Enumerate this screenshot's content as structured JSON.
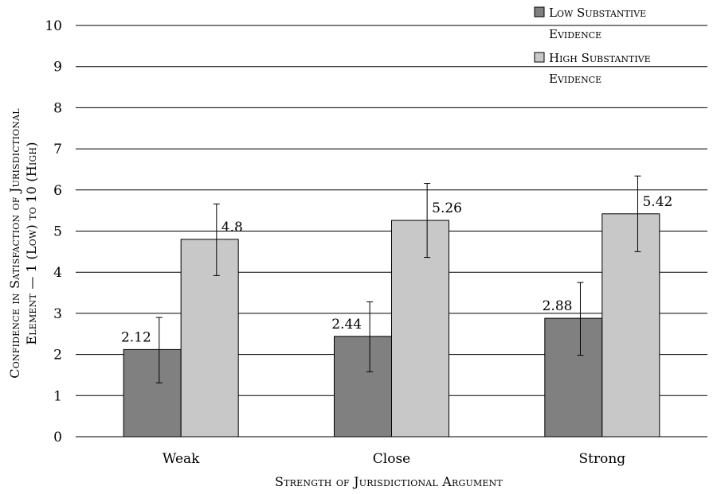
{
  "chart_data": {
    "type": "bar",
    "categories": [
      "Weak",
      "Close",
      "Strong"
    ],
    "series": [
      {
        "name": "Low Substantive Evidence",
        "values": [
          2.12,
          2.44,
          2.88
        ],
        "error_low": [
          1.31,
          1.58,
          1.98
        ],
        "error_high": [
          2.9,
          3.28,
          3.75
        ],
        "color": "#808080"
      },
      {
        "name": "High Substantive Evidence",
        "values": [
          4.8,
          5.26,
          5.42
        ],
        "error_low": [
          3.92,
          4.36,
          4.5
        ],
        "error_high": [
          5.66,
          6.16,
          6.34
        ],
        "color": "#c8c8c8"
      }
    ],
    "data_labels": [
      [
        "2.12",
        "2.44",
        "2.88"
      ],
      [
        "4.8",
        "5.26",
        "5.42"
      ]
    ],
    "xlabel": "Strength of Jurisdictional Argument",
    "ylabel_lines": [
      "Confidence in Satisfaction of Jurisdictional",
      "Element — 1 (Low) to 10 (High)"
    ],
    "legend_lines": [
      [
        "Low Substantive",
        "Evidence"
      ],
      [
        "High Substantive",
        "Evidence"
      ]
    ],
    "ylim": [
      0,
      10
    ],
    "yticks": [
      "0",
      "1",
      "2",
      "3",
      "4",
      "5",
      "6",
      "7",
      "8",
      "9",
      "10"
    ],
    "grid": true,
    "legend_position": "top-right"
  }
}
